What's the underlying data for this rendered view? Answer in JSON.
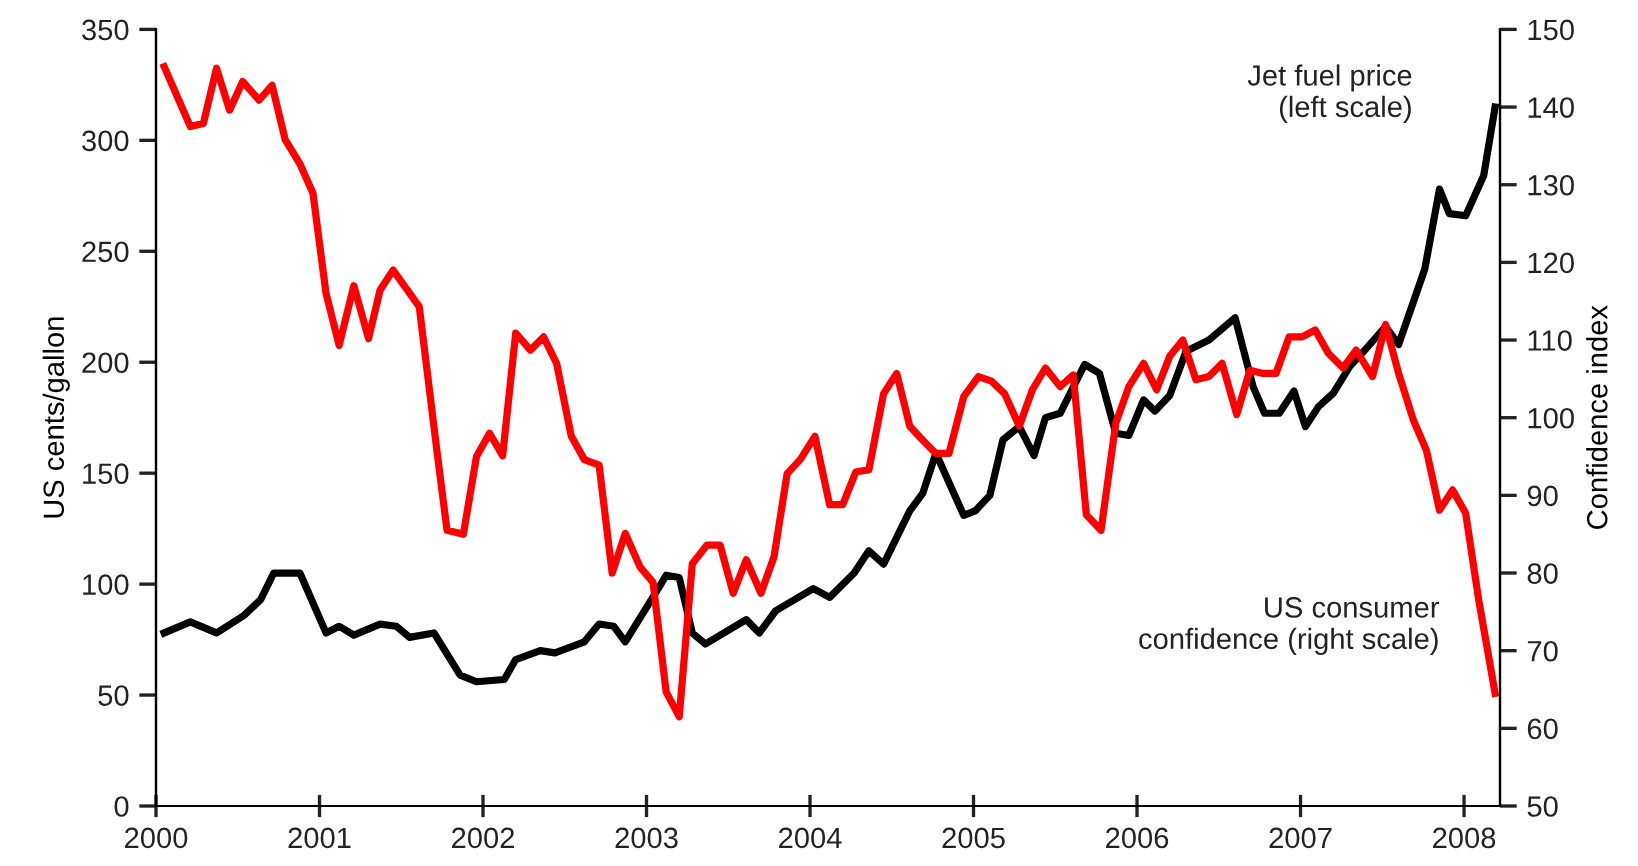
{
  "chart_data": {
    "type": "line",
    "ylabel": "US cents/gallon",
    "y2label": "Confidence index",
    "xlim": [
      2000,
      2008.22
    ],
    "xticks": [
      2000,
      2001,
      2002,
      2003,
      2004,
      2005,
      2006,
      2007,
      2008
    ],
    "ylim": [
      0,
      350
    ],
    "yticks": [
      0,
      50,
      100,
      150,
      200,
      250,
      300,
      350
    ],
    "y2lim": [
      50,
      150
    ],
    "y2ticks": [
      50,
      60,
      70,
      80,
      90,
      100,
      110,
      120,
      130,
      140,
      150
    ],
    "grid": false,
    "legend": false,
    "marker": "none",
    "line_style": "solid",
    "series": [
      {
        "name": "Jet fuel price\n(left scale)",
        "color": "#000000",
        "axis": "y",
        "x": [
          2000.05,
          2000.21,
          2000.37,
          2000.54,
          2000.64,
          2000.72,
          2000.88,
          2001.04,
          2001.12,
          2001.21,
          2001.37,
          2001.47,
          2001.55,
          2001.7,
          2001.86,
          2001.96,
          2002.13,
          2002.2,
          2002.35,
          2002.44,
          2002.62,
          2002.71,
          2002.8,
          2002.87,
          2003.08,
          2003.12,
          2003.2,
          2003.28,
          2003.36,
          2003.61,
          2003.69,
          2003.79,
          2004.02,
          2004.12,
          2004.27,
          2004.36,
          2004.45,
          2004.61,
          2004.69,
          2004.77,
          2004.94,
          2005.01,
          2005.1,
          2005.18,
          2005.28,
          2005.37,
          2005.44,
          2005.53,
          2005.68,
          2005.77,
          2005.87,
          2005.95,
          2006.04,
          2006.11,
          2006.2,
          2006.3,
          2006.44,
          2006.6,
          2006.71,
          2006.78,
          2006.87,
          2006.96,
          2007.03,
          2007.11,
          2007.2,
          2007.3,
          2007.4,
          2007.52,
          2007.6,
          2007.76,
          2007.85,
          2007.91,
          2008.01,
          2008.12,
          2008.19
        ],
        "values": [
          78,
          83,
          78,
          86,
          93,
          105,
          105,
          78,
          81,
          77,
          82,
          81,
          76,
          78,
          59,
          56,
          57,
          66,
          70,
          69,
          74,
          82,
          81,
          74,
          99,
          104,
          103,
          78,
          73,
          84,
          78,
          88,
          98,
          94,
          105,
          115,
          109,
          133,
          141,
          159,
          131,
          133,
          140,
          165,
          171,
          158,
          175,
          177,
          199,
          195,
          168,
          167,
          183,
          178,
          185,
          205,
          210,
          220,
          189,
          177,
          177,
          187,
          171,
          180,
          186,
          198,
          206,
          216,
          208,
          242,
          278,
          267,
          266,
          284,
          315
        ]
      },
      {
        "name": "US consumer\nconfidence (right scale)",
        "color": "#ff0000",
        "axis": "y2",
        "x": [
          2000.05,
          2000.21,
          2000.29,
          2000.37,
          2000.45,
          2000.53,
          2000.63,
          2000.71,
          2000.79,
          2000.88,
          2000.96,
          2001.04,
          2001.12,
          2001.21,
          2001.3,
          2001.37,
          2001.45,
          2001.61,
          2001.72,
          2001.78,
          2001.88,
          2001.96,
          2002.04,
          2002.12,
          2002.2,
          2002.29,
          2002.37,
          2002.45,
          2002.54,
          2002.62,
          2002.71,
          2002.79,
          2002.87,
          2002.96,
          2003.04,
          2003.12,
          2003.2,
          2003.28,
          2003.37,
          2003.45,
          2003.53,
          2003.61,
          2003.7,
          2003.78,
          2003.86,
          2003.94,
          2004.03,
          2004.12,
          2004.2,
          2004.28,
          2004.36,
          2004.45,
          2004.53,
          2004.61,
          2004.69,
          2004.77,
          2004.85,
          2004.94,
          2005.03,
          2005.11,
          2005.19,
          2005.28,
          2005.36,
          2005.44,
          2005.53,
          2005.61,
          2005.69,
          2005.78,
          2005.87,
          2005.95,
          2006.04,
          2006.12,
          2006.2,
          2006.28,
          2006.36,
          2006.44,
          2006.52,
          2006.61,
          2006.69,
          2006.77,
          2006.85,
          2006.93,
          2007.01,
          2007.09,
          2007.17,
          2007.26,
          2007.34,
          2007.44,
          2007.52,
          2007.6,
          2007.69,
          2007.77,
          2007.85,
          2007.93,
          2008.01,
          2008.09,
          2008.19
        ],
        "values": [
          145.2,
          137.5,
          137.9,
          145,
          139.6,
          143.3,
          140.9,
          142.8,
          135.8,
          132.7,
          128.9,
          116,
          109.3,
          117,
          110.2,
          116.4,
          119,
          114.3,
          95.4,
          85.5,
          85,
          95,
          98,
          95.1,
          110.9,
          108.7,
          110.4,
          107,
          97.6,
          94.6,
          93.9,
          80,
          85.1,
          80.8,
          78.8,
          64.7,
          61.5,
          81.2,
          83.6,
          83.6,
          77.4,
          81.7,
          77.4,
          82.1,
          92.8,
          94.6,
          97.6,
          88.8,
          88.8,
          93,
          93.3,
          103.1,
          105.7,
          98.9,
          97.1,
          95.4,
          95.4,
          102.7,
          105.3,
          104.7,
          103.1,
          98.9,
          103.6,
          106.4,
          104,
          105.5,
          87.5,
          85.5,
          99.3,
          104,
          107,
          103.6,
          107.9,
          110,
          104.9,
          105.3,
          107,
          100.4,
          106.1,
          105.7,
          105.7,
          110.4,
          110.4,
          111.3,
          108.3,
          106.4,
          108.7,
          105.3,
          112,
          105.7,
          99.7,
          95.8,
          88.1,
          90.7,
          87.7,
          76.5,
          64.5
        ]
      }
    ]
  }
}
